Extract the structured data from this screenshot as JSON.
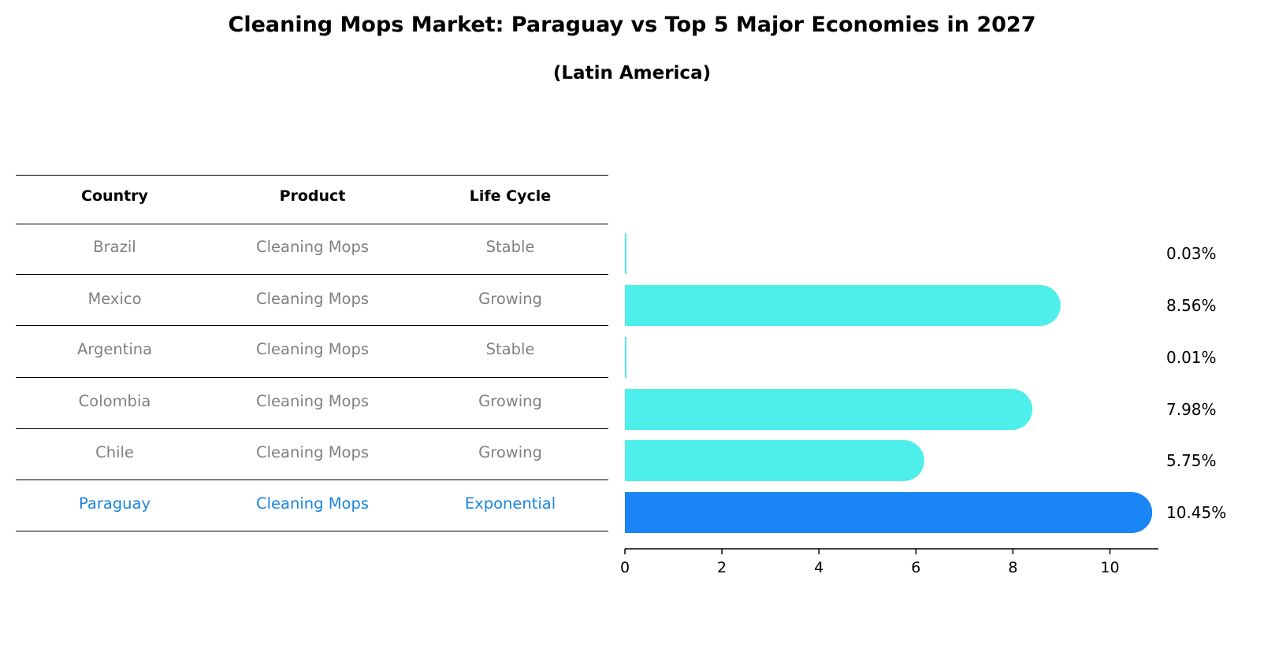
{
  "chart_data": {
    "type": "bar",
    "orientation": "horizontal",
    "title": "Cleaning Mops Market: Paraguay vs Top 5 Major Economies in 2027",
    "subtitle": "(Latin America)",
    "categories": [
      "Brazil",
      "Mexico",
      "Argentina",
      "Colombia",
      "Chile",
      "Paraguay"
    ],
    "values": [
      0.03,
      8.56,
      0.01,
      7.98,
      5.75,
      10.45
    ],
    "value_labels": [
      "0.03%",
      "8.56%",
      "0.01%",
      "7.98%",
      "5.75%",
      "10.45%"
    ],
    "highlight": "Paraguay",
    "xlim": [
      0,
      11
    ],
    "xticks": [
      0,
      2,
      4,
      6,
      8,
      10
    ],
    "xlabel": "",
    "ylabel": "",
    "bar_color": "#4eeeea",
    "highlight_color": "#1a85f5"
  },
  "table": {
    "headers": [
      "Country",
      "Product",
      "Life Cycle"
    ],
    "rows": [
      {
        "country": "Brazil",
        "product": "Cleaning Mops",
        "life_cycle": "Stable"
      },
      {
        "country": "Mexico",
        "product": "Cleaning Mops",
        "life_cycle": "Growing"
      },
      {
        "country": "Argentina",
        "product": "Cleaning Mops",
        "life_cycle": "Stable"
      },
      {
        "country": "Colombia",
        "product": "Cleaning Mops",
        "life_cycle": "Growing"
      },
      {
        "country": "Chile",
        "product": "Cleaning Mops",
        "life_cycle": "Growing"
      },
      {
        "country": "Paraguay",
        "product": "Cleaning Mops",
        "life_cycle": "Exponential"
      }
    ],
    "text_color": "#808080",
    "highlight_text_color": "#1a85e0"
  }
}
